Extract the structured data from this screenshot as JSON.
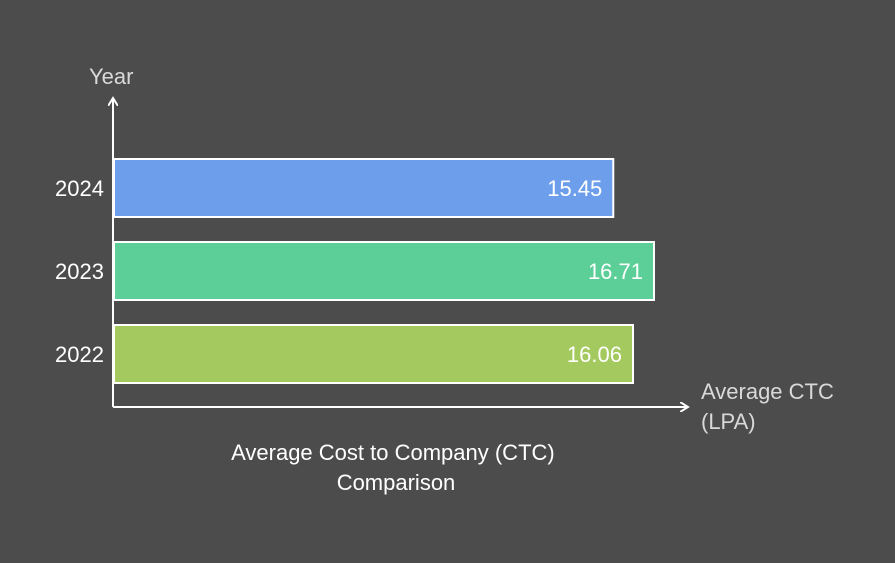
{
  "chart_data": {
    "type": "bar",
    "orientation": "horizontal",
    "title": "Average Cost to Company (CTC) Comparison",
    "title_lines": [
      "Average Cost to Company (CTC)",
      "Comparison"
    ],
    "xlabel_lines": [
      "Average CTC",
      "(LPA)"
    ],
    "ylabel": "Year",
    "categories": [
      "2024",
      "2023",
      "2022"
    ],
    "values": [
      15.45,
      16.71,
      16.06
    ],
    "data_labels": [
      "15.45",
      "16.71",
      "16.06"
    ],
    "colors": [
      "#6d9eeb",
      "#5ccf98",
      "#a4c95e"
    ],
    "xlim": [
      0,
      18
    ],
    "grid": false,
    "legend": "none"
  }
}
